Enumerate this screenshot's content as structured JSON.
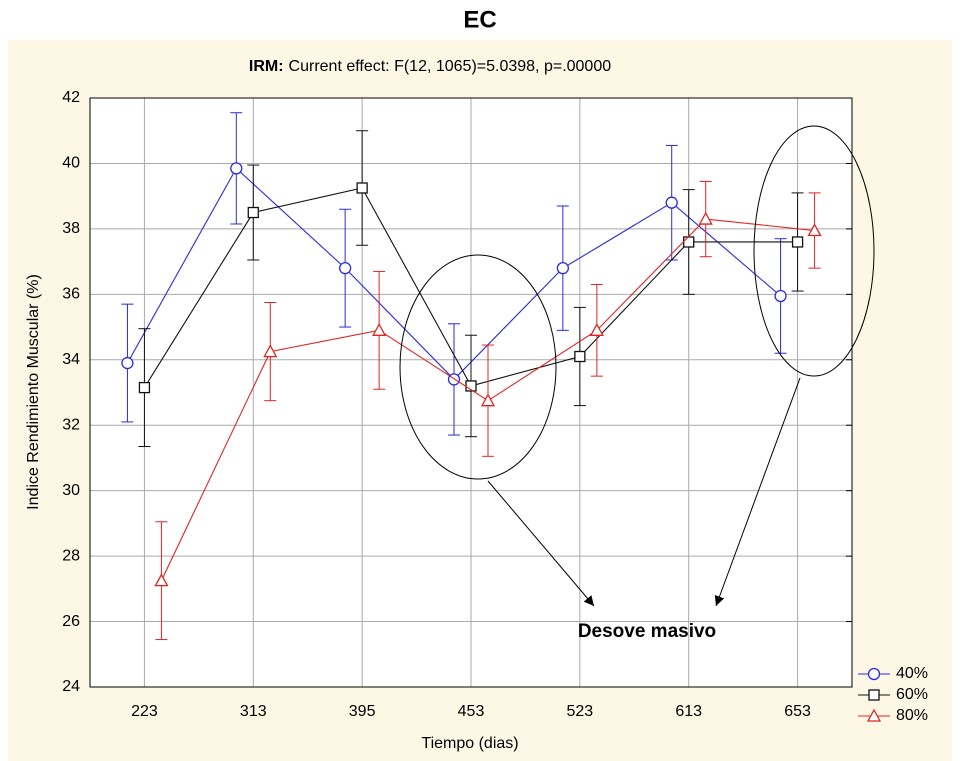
{
  "chart_data": {
    "type": "line",
    "title": "EC",
    "subtitle_label": "IRM:",
    "subtitle": "Current effect: F(12, 1065)=5.0398, p=.00000",
    "xlabel": "Tiempo (dias)",
    "ylabel": "Indice Rendimiento Muscular (%)",
    "categories": [
      "223",
      "313",
      "395",
      "453",
      "523",
      "613",
      "653"
    ],
    "series": [
      {
        "name": "40%",
        "color": "#2a2ae0",
        "marker": "circle",
        "values": [
          33.9,
          39.85,
          36.8,
          33.4,
          36.8,
          38.8,
          35.95
        ],
        "errors": [
          1.8,
          1.7,
          1.8,
          1.7,
          1.9,
          1.75,
          1.75
        ]
      },
      {
        "name": "60%",
        "color": "#111111",
        "marker": "square",
        "values": [
          33.15,
          38.5,
          39.25,
          33.2,
          34.1,
          37.6,
          37.6
        ],
        "errors": [
          1.8,
          1.45,
          1.75,
          1.55,
          1.5,
          1.6,
          1.5
        ]
      },
      {
        "name": "80%",
        "color": "#e02424",
        "marker": "triangle",
        "values": [
          27.25,
          34.25,
          34.9,
          32.75,
          34.9,
          38.3,
          37.95
        ],
        "errors": [
          1.8,
          1.5,
          1.8,
          1.7,
          1.4,
          1.15,
          1.15
        ]
      }
    ],
    "annotation": "Desove masivo",
    "ylim": [
      24,
      42
    ],
    "yticks": [
      24,
      26,
      28,
      30,
      32,
      34,
      36,
      38,
      40,
      42
    ],
    "grid": true,
    "legend": "lower right"
  }
}
